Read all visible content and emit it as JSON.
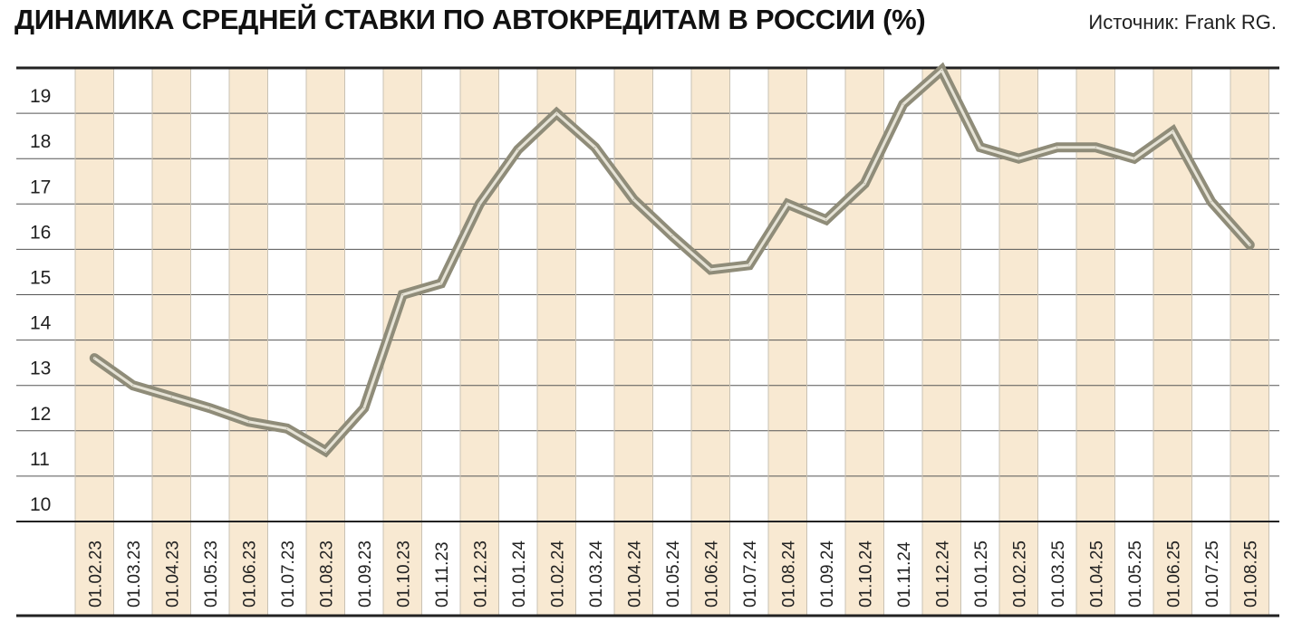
{
  "title": "ДИНАМИКА СРЕДНЕЙ СТАВКИ ПО АВТОКРЕДИТАМ В РОССИИ (%)",
  "source": "Источник: Frank RG.",
  "colors": {
    "stripe": "#f8e9d2",
    "line_outer": "#8f8c79",
    "line_inner": "#e6e3d6",
    "grid": "#555555",
    "axis": "#222222"
  },
  "chart_data": {
    "type": "line",
    "title": "ДИНАМИКА СРЕДНЕЙ СТАВКИ ПО АВТОКРЕДИТАМ В РОССИИ (%)",
    "xlabel": "",
    "ylabel": "",
    "y_tick_labels": [
      "10",
      "11",
      "12",
      "13",
      "14",
      "15",
      "16",
      "17",
      "18",
      "19"
    ],
    "ylim": [
      9.6,
      19.6
    ],
    "grid": true,
    "categories": [
      "01.02.23",
      "01.03.23",
      "01.04.23",
      "01.05.23",
      "01.06.23",
      "01.07.23",
      "01.08.23",
      "01.09.23",
      "01.10.23",
      "01.11.23",
      "01.12.23",
      "01.01.24",
      "01.02.24",
      "01.03.24",
      "01.04.24",
      "01.05.24",
      "01.06.24",
      "01.07.24",
      "01.08.24",
      "01.09.24",
      "01.10.24",
      "01.11.24",
      "01.12.24",
      "01.01.25",
      "01.02.25",
      "01.03.25",
      "01.04.25",
      "01.05.25",
      "01.06.25",
      "01.07.25",
      "01.08.25"
    ],
    "series": [
      {
        "values": [
          13.2,
          12.6,
          12.35,
          12.1,
          11.8,
          11.65,
          11.15,
          12.1,
          14.6,
          14.85,
          16.6,
          17.8,
          18.6,
          17.85,
          16.7,
          15.9,
          15.15,
          15.25,
          16.6,
          16.25,
          17.05,
          18.8,
          19.55,
          17.85,
          17.6,
          17.85,
          17.85,
          17.6,
          18.2,
          16.65,
          15.7
        ]
      }
    ]
  }
}
